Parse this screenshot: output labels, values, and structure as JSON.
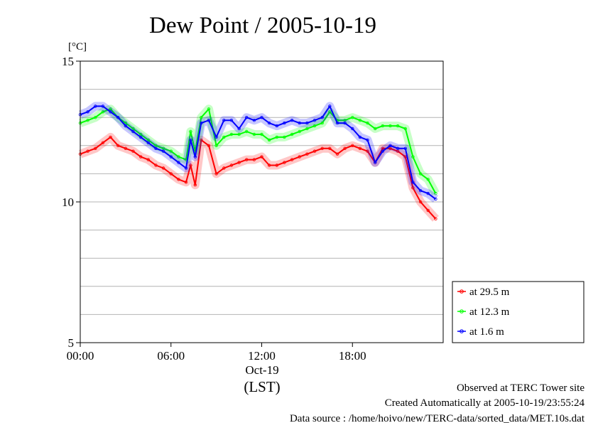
{
  "chart_data": {
    "type": "line",
    "title": "Dew Point / 2005-10-19",
    "yunit": "[°C]",
    "ylim": [
      5,
      15
    ],
    "yticks": [
      5,
      10,
      15
    ],
    "xlim": [
      0,
      24
    ],
    "xticks": [
      {
        "x": 0,
        "label": "00:00"
      },
      {
        "x": 6,
        "label": "06:00"
      },
      {
        "x": 12,
        "label": "12:00"
      },
      {
        "x": 18,
        "label": "18:00"
      }
    ],
    "date_label": "Oct-19",
    "xlabel": "(LST)",
    "grid": true,
    "legend_position": "right-bottom, outside plot",
    "series": [
      {
        "name": "at 29.5 m",
        "color": "#ff0000",
        "x": [
          0,
          0.5,
          1,
          1.5,
          2,
          2.5,
          3,
          3.5,
          4,
          4.5,
          5,
          5.5,
          6,
          6.5,
          7,
          7.3,
          7.6,
          8,
          8.5,
          9,
          9.5,
          10,
          10.5,
          11,
          11.5,
          12,
          12.5,
          13,
          13.5,
          14,
          14.5,
          15,
          15.5,
          16,
          16.5,
          17,
          17.5,
          18,
          18.5,
          19,
          19.5,
          20,
          20.5,
          21,
          21.5,
          22,
          22.5,
          23,
          23.5
        ],
        "values": [
          11.7,
          11.8,
          11.9,
          12.1,
          12.3,
          12.0,
          11.9,
          11.8,
          11.6,
          11.5,
          11.3,
          11.2,
          11.0,
          10.8,
          10.7,
          11.3,
          10.6,
          12.2,
          12.0,
          11.0,
          11.2,
          11.3,
          11.4,
          11.5,
          11.5,
          11.6,
          11.3,
          11.3,
          11.4,
          11.5,
          11.6,
          11.7,
          11.8,
          11.9,
          11.9,
          11.7,
          11.9,
          12.0,
          11.9,
          11.8,
          11.4,
          11.9,
          11.9,
          11.8,
          11.6,
          10.5,
          10.0,
          9.7,
          9.4
        ]
      },
      {
        "name": "at 12.3 m",
        "color": "#00ff00",
        "x": [
          0,
          0.5,
          1,
          1.5,
          2,
          2.5,
          3,
          3.5,
          4,
          4.5,
          5,
          5.5,
          6,
          6.5,
          7,
          7.3,
          7.6,
          8,
          8.5,
          9,
          9.5,
          10,
          10.5,
          11,
          11.5,
          12,
          12.5,
          13,
          13.5,
          14,
          14.5,
          15,
          15.5,
          16,
          16.5,
          17,
          17.5,
          18,
          18.5,
          19,
          19.5,
          20,
          20.5,
          21,
          21.5,
          22,
          22.5,
          23,
          23.5
        ],
        "values": [
          12.8,
          12.9,
          13.0,
          13.2,
          13.3,
          13.0,
          12.8,
          12.6,
          12.4,
          12.2,
          12.0,
          11.9,
          11.8,
          11.6,
          11.5,
          12.5,
          11.8,
          13.0,
          13.3,
          12.0,
          12.3,
          12.4,
          12.4,
          12.5,
          12.4,
          12.4,
          12.2,
          12.3,
          12.3,
          12.4,
          12.5,
          12.6,
          12.7,
          12.8,
          13.2,
          12.9,
          12.9,
          13.0,
          12.9,
          12.8,
          12.6,
          12.7,
          12.7,
          12.7,
          12.6,
          11.6,
          11.0,
          10.8,
          10.3
        ]
      },
      {
        "name": "at 1.6 m",
        "color": "#0000ff",
        "x": [
          0,
          0.5,
          1,
          1.5,
          2,
          2.5,
          3,
          3.5,
          4,
          4.5,
          5,
          5.5,
          6,
          6.5,
          7,
          7.3,
          7.6,
          8,
          8.5,
          9,
          9.5,
          10,
          10.5,
          11,
          11.5,
          12,
          12.5,
          13,
          13.5,
          14,
          14.5,
          15,
          15.5,
          16,
          16.5,
          17,
          17.5,
          18,
          18.5,
          19,
          19.5,
          20,
          20.5,
          21,
          21.5,
          22,
          22.5,
          23,
          23.5
        ],
        "values": [
          13.1,
          13.2,
          13.4,
          13.4,
          13.2,
          13.0,
          12.7,
          12.5,
          12.3,
          12.1,
          11.9,
          11.8,
          11.6,
          11.4,
          11.2,
          12.2,
          11.6,
          12.8,
          12.9,
          12.3,
          12.9,
          12.9,
          12.6,
          13.0,
          12.9,
          13.0,
          12.8,
          12.7,
          12.8,
          12.9,
          12.8,
          12.8,
          12.9,
          13.0,
          13.4,
          12.8,
          12.8,
          12.6,
          12.3,
          12.2,
          11.4,
          11.8,
          12.0,
          11.9,
          11.9,
          10.7,
          10.4,
          10.3,
          10.1
        ]
      }
    ]
  },
  "footer": {
    "line1": "Observed at TERC Tower site",
    "line2": "Created Automatically at 2005-10-19/23:55:24",
    "line3": "Data source : /home/hoivo/new/TERC-data/sorted_data/MET.10s.dat"
  }
}
